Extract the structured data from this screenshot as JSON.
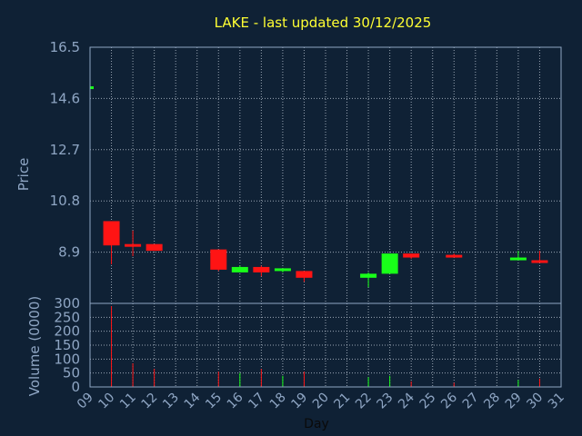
{
  "colors": {
    "background": "#0f2135",
    "frame": "#8fa6c4",
    "grid": "#c8d2de",
    "title": "#ffff33",
    "up": "#19ff19",
    "down": "#ff1414"
  },
  "chart_data": {
    "type": "candlestick",
    "title": "LAKE - last updated 30/12/2025",
    "price_axis": {
      "label": "Price",
      "ylim": [
        7.0,
        16.5
      ],
      "ticks": [
        "16.5",
        "14.6",
        "12.7",
        "10.8",
        "8.9"
      ]
    },
    "volume_axis": {
      "label": "Volume (0000)",
      "ylim": [
        0,
        300
      ],
      "ticks": [
        "300",
        "250",
        "200",
        "150",
        "100",
        "50",
        "0"
      ]
    },
    "x_axis": {
      "label": "Day",
      "range": [
        9,
        31
      ],
      "ticks": [
        "09",
        "10",
        "11",
        "12",
        "13",
        "14",
        "15",
        "16",
        "17",
        "18",
        "19",
        "20",
        "21",
        "22",
        "23",
        "24",
        "25",
        "26",
        "27",
        "28",
        "29",
        "30",
        "31"
      ]
    },
    "grid": true,
    "candles": [
      {
        "day": 9,
        "open": 14.95,
        "close": 15.05,
        "high": 15.05,
        "low": 14.95,
        "volume": 0
      },
      {
        "day": 10,
        "open": 10.05,
        "close": 9.15,
        "high": 10.05,
        "low": 8.45,
        "volume": 290
      },
      {
        "day": 11,
        "open": 9.2,
        "close": 9.1,
        "high": 9.7,
        "low": 8.75,
        "volume": 85
      },
      {
        "day": 12,
        "open": 9.2,
        "close": 8.95,
        "high": 9.2,
        "low": 8.95,
        "volume": 65
      },
      {
        "day": 15,
        "open": 9.0,
        "close": 8.25,
        "high": 9.0,
        "low": 8.2,
        "volume": 55
      },
      {
        "day": 16,
        "open": 8.15,
        "close": 8.35,
        "high": 8.4,
        "low": 8.15,
        "volume": 50
      },
      {
        "day": 17,
        "open": 8.35,
        "close": 8.15,
        "high": 8.4,
        "low": 8.0,
        "volume": 65
      },
      {
        "day": 18,
        "open": 8.2,
        "close": 8.3,
        "high": 8.3,
        "low": 8.15,
        "volume": 40
      },
      {
        "day": 19,
        "open": 8.2,
        "close": 7.95,
        "high": 8.2,
        "low": 7.8,
        "volume": 55
      },
      {
        "day": 22,
        "open": 7.95,
        "close": 8.1,
        "high": 8.15,
        "low": 7.6,
        "volume": 35
      },
      {
        "day": 23,
        "open": 8.1,
        "close": 8.85,
        "high": 8.85,
        "low": 8.1,
        "volume": 40
      },
      {
        "day": 24,
        "open": 8.85,
        "close": 8.7,
        "high": 8.85,
        "low": 8.65,
        "volume": 20
      },
      {
        "day": 26,
        "open": 8.8,
        "close": 8.75,
        "high": 8.85,
        "low": 8.75,
        "volume": 15
      },
      {
        "day": 29,
        "open": 8.6,
        "close": 8.7,
        "high": 8.95,
        "low": 8.6,
        "volume": 25
      },
      {
        "day": 30,
        "open": 8.6,
        "close": 8.5,
        "high": 8.95,
        "low": 8.5,
        "volume": 30
      }
    ]
  }
}
